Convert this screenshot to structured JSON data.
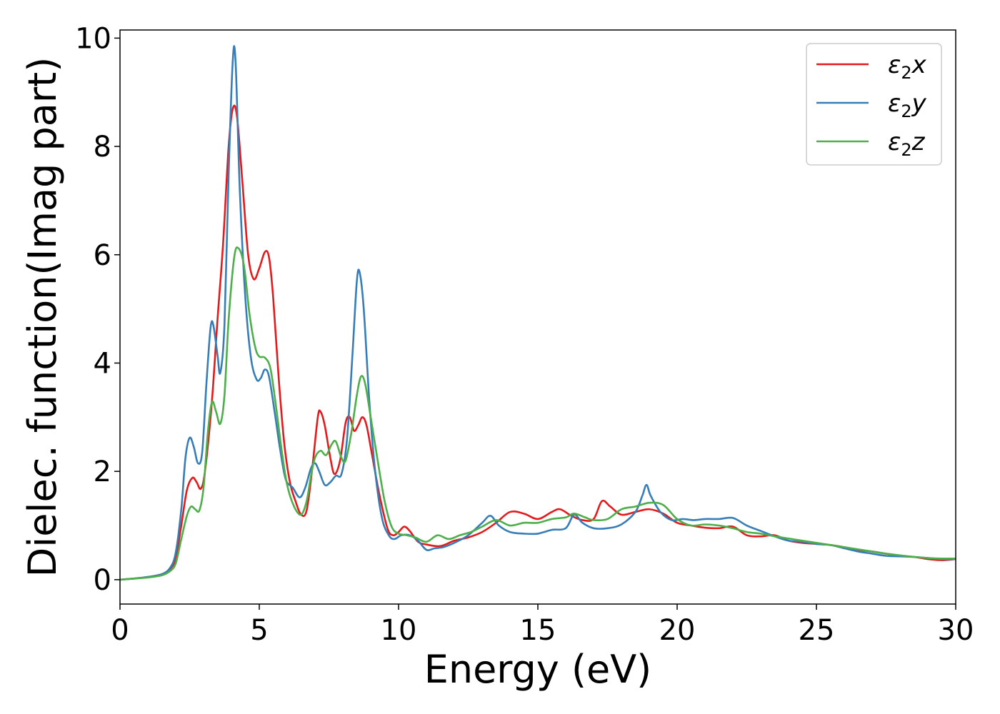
{
  "chart_data": {
    "type": "line",
    "title": "",
    "xlabel": "Energy (eV)",
    "ylabel": "Dielec. function(Imag part)",
    "xlim": [
      0,
      30
    ],
    "ylim": [
      -0.45,
      10.15
    ],
    "xticks": [
      0,
      5,
      10,
      15,
      20,
      25,
      30
    ],
    "yticks": [
      0,
      2,
      4,
      6,
      8,
      10
    ],
    "grid": false,
    "legend_position": "top-right",
    "series": [
      {
        "name": "ε2x",
        "label_main": "ε",
        "label_sub": "2",
        "label_suffix": "x",
        "color": "#e41a1c",
        "points": [
          [
            0,
            0
          ],
          [
            0.5,
            0.02
          ],
          [
            1,
            0.05
          ],
          [
            1.5,
            0.1
          ],
          [
            1.8,
            0.2
          ],
          [
            2,
            0.4
          ],
          [
            2.2,
            1
          ],
          [
            2.4,
            1.65
          ],
          [
            2.6,
            1.88
          ],
          [
            2.75,
            1.8
          ],
          [
            2.9,
            1.68
          ],
          [
            3.05,
            2.0
          ],
          [
            3.3,
            3.3
          ],
          [
            3.5,
            4.8
          ],
          [
            3.7,
            6.2
          ],
          [
            3.9,
            8.0
          ],
          [
            4.05,
            8.7
          ],
          [
            4.2,
            8.55
          ],
          [
            4.4,
            7.3
          ],
          [
            4.6,
            6.0
          ],
          [
            4.8,
            5.55
          ],
          [
            5.0,
            5.75
          ],
          [
            5.2,
            6.05
          ],
          [
            5.35,
            5.95
          ],
          [
            5.5,
            5.2
          ],
          [
            5.7,
            3.7
          ],
          [
            5.9,
            2.5
          ],
          [
            6.1,
            1.8
          ],
          [
            6.3,
            1.45
          ],
          [
            6.5,
            1.2
          ],
          [
            6.7,
            1.28
          ],
          [
            6.9,
            2.05
          ],
          [
            7.1,
            3.0
          ],
          [
            7.2,
            3.1
          ],
          [
            7.35,
            2.85
          ],
          [
            7.55,
            2.25
          ],
          [
            7.7,
            1.95
          ],
          [
            7.9,
            2.2
          ],
          [
            8.1,
            2.9
          ],
          [
            8.25,
            3.0
          ],
          [
            8.4,
            2.75
          ],
          [
            8.55,
            2.85
          ],
          [
            8.7,
            3.0
          ],
          [
            8.85,
            2.85
          ],
          [
            9.05,
            2.3
          ],
          [
            9.3,
            1.6
          ],
          [
            9.6,
            0.95
          ],
          [
            9.8,
            0.82
          ],
          [
            10.0,
            0.88
          ],
          [
            10.2,
            0.98
          ],
          [
            10.4,
            0.9
          ],
          [
            10.7,
            0.7
          ],
          [
            11.0,
            0.65
          ],
          [
            11.5,
            0.62
          ],
          [
            12.0,
            0.72
          ],
          [
            12.5,
            0.78
          ],
          [
            13.0,
            0.88
          ],
          [
            13.5,
            1.05
          ],
          [
            14.0,
            1.25
          ],
          [
            14.5,
            1.22
          ],
          [
            15.0,
            1.12
          ],
          [
            15.5,
            1.25
          ],
          [
            15.8,
            1.3
          ],
          [
            16.2,
            1.18
          ],
          [
            16.6,
            1.1
          ],
          [
            17.0,
            1.12
          ],
          [
            17.3,
            1.45
          ],
          [
            17.6,
            1.35
          ],
          [
            18.0,
            1.2
          ],
          [
            18.5,
            1.25
          ],
          [
            19.0,
            1.3
          ],
          [
            19.5,
            1.22
          ],
          [
            20.0,
            1.05
          ],
          [
            20.5,
            1.0
          ],
          [
            21.0,
            0.96
          ],
          [
            21.5,
            0.95
          ],
          [
            22.0,
            0.98
          ],
          [
            22.5,
            0.82
          ],
          [
            23.0,
            0.8
          ],
          [
            23.5,
            0.82
          ],
          [
            24.0,
            0.72
          ],
          [
            24.5,
            0.68
          ],
          [
            25.0,
            0.66
          ],
          [
            25.5,
            0.64
          ],
          [
            26.0,
            0.6
          ],
          [
            26.5,
            0.55
          ],
          [
            27.0,
            0.52
          ],
          [
            27.5,
            0.48
          ],
          [
            28.0,
            0.44
          ],
          [
            28.5,
            0.42
          ],
          [
            29.0,
            0.38
          ],
          [
            29.5,
            0.36
          ],
          [
            30.0,
            0.38
          ]
        ]
      },
      {
        "name": "ε2y",
        "label_main": "ε",
        "label_sub": "2",
        "label_suffix": "y",
        "color": "#377eb8",
        "points": [
          [
            0,
            0
          ],
          [
            0.5,
            0.02
          ],
          [
            1,
            0.05
          ],
          [
            1.5,
            0.1
          ],
          [
            1.8,
            0.22
          ],
          [
            2,
            0.5
          ],
          [
            2.2,
            1.3
          ],
          [
            2.35,
            2.25
          ],
          [
            2.5,
            2.62
          ],
          [
            2.65,
            2.45
          ],
          [
            2.8,
            2.15
          ],
          [
            2.95,
            2.35
          ],
          [
            3.1,
            3.6
          ],
          [
            3.25,
            4.65
          ],
          [
            3.35,
            4.7
          ],
          [
            3.5,
            4.15
          ],
          [
            3.6,
            3.82
          ],
          [
            3.75,
            4.7
          ],
          [
            3.9,
            7.5
          ],
          [
            4.05,
            9.6
          ],
          [
            4.15,
            9.55
          ],
          [
            4.3,
            7.2
          ],
          [
            4.5,
            5.2
          ],
          [
            4.7,
            4.1
          ],
          [
            4.9,
            3.7
          ],
          [
            5.05,
            3.72
          ],
          [
            5.2,
            3.88
          ],
          [
            5.35,
            3.75
          ],
          [
            5.55,
            3.1
          ],
          [
            5.75,
            2.4
          ],
          [
            5.95,
            1.85
          ],
          [
            6.2,
            1.7
          ],
          [
            6.45,
            1.52
          ],
          [
            6.65,
            1.7
          ],
          [
            6.85,
            2.05
          ],
          [
            7.0,
            2.15
          ],
          [
            7.15,
            2.0
          ],
          [
            7.35,
            1.75
          ],
          [
            7.55,
            1.8
          ],
          [
            7.75,
            1.92
          ],
          [
            7.95,
            1.95
          ],
          [
            8.15,
            2.6
          ],
          [
            8.35,
            4.2
          ],
          [
            8.5,
            5.5
          ],
          [
            8.6,
            5.68
          ],
          [
            8.75,
            5.0
          ],
          [
            8.95,
            3.3
          ],
          [
            9.15,
            2.05
          ],
          [
            9.4,
            1.15
          ],
          [
            9.65,
            0.82
          ],
          [
            9.85,
            0.75
          ],
          [
            10.1,
            0.82
          ],
          [
            10.4,
            0.82
          ],
          [
            10.7,
            0.72
          ],
          [
            11.0,
            0.55
          ],
          [
            11.3,
            0.58
          ],
          [
            11.6,
            0.6
          ],
          [
            12.0,
            0.68
          ],
          [
            12.5,
            0.82
          ],
          [
            13.0,
            1.05
          ],
          [
            13.3,
            1.18
          ],
          [
            13.6,
            1.0
          ],
          [
            14.0,
            0.88
          ],
          [
            14.5,
            0.85
          ],
          [
            15.0,
            0.85
          ],
          [
            15.5,
            0.92
          ],
          [
            16.0,
            0.95
          ],
          [
            16.3,
            1.2
          ],
          [
            16.6,
            1.05
          ],
          [
            17.0,
            0.95
          ],
          [
            17.5,
            0.95
          ],
          [
            18.0,
            1.02
          ],
          [
            18.5,
            1.25
          ],
          [
            18.75,
            1.55
          ],
          [
            18.9,
            1.75
          ],
          [
            19.05,
            1.55
          ],
          [
            19.4,
            1.25
          ],
          [
            19.8,
            1.1
          ],
          [
            20.2,
            1.12
          ],
          [
            20.6,
            1.1
          ],
          [
            21.0,
            1.12
          ],
          [
            21.5,
            1.12
          ],
          [
            22.0,
            1.14
          ],
          [
            22.5,
            1.0
          ],
          [
            23.0,
            0.9
          ],
          [
            23.5,
            0.8
          ],
          [
            24.0,
            0.72
          ],
          [
            24.5,
            0.7
          ],
          [
            25.0,
            0.66
          ],
          [
            25.5,
            0.64
          ],
          [
            26.0,
            0.58
          ],
          [
            26.5,
            0.52
          ],
          [
            27.0,
            0.48
          ],
          [
            27.5,
            0.44
          ],
          [
            28.0,
            0.43
          ],
          [
            28.5,
            0.42
          ],
          [
            29.0,
            0.4
          ],
          [
            29.5,
            0.38
          ],
          [
            30.0,
            0.38
          ]
        ]
      },
      {
        "name": "ε2z",
        "label_main": "ε",
        "label_sub": "2",
        "label_suffix": "z",
        "color": "#4daf4a",
        "points": [
          [
            0,
            0
          ],
          [
            0.5,
            0.02
          ],
          [
            1,
            0.04
          ],
          [
            1.5,
            0.08
          ],
          [
            1.8,
            0.16
          ],
          [
            2,
            0.3
          ],
          [
            2.2,
            0.75
          ],
          [
            2.4,
            1.18
          ],
          [
            2.55,
            1.35
          ],
          [
            2.7,
            1.3
          ],
          [
            2.85,
            1.28
          ],
          [
            3.0,
            1.7
          ],
          [
            3.15,
            2.7
          ],
          [
            3.3,
            3.28
          ],
          [
            3.45,
            3.1
          ],
          [
            3.6,
            2.88
          ],
          [
            3.75,
            3.4
          ],
          [
            3.9,
            4.8
          ],
          [
            4.1,
            5.95
          ],
          [
            4.25,
            6.12
          ],
          [
            4.45,
            5.8
          ],
          [
            4.65,
            4.9
          ],
          [
            4.85,
            4.3
          ],
          [
            5.0,
            4.12
          ],
          [
            5.2,
            4.1
          ],
          [
            5.4,
            3.9
          ],
          [
            5.6,
            3.2
          ],
          [
            5.8,
            2.4
          ],
          [
            6.0,
            1.75
          ],
          [
            6.25,
            1.35
          ],
          [
            6.5,
            1.2
          ],
          [
            6.7,
            1.45
          ],
          [
            6.85,
            1.9
          ],
          [
            7.0,
            2.25
          ],
          [
            7.2,
            2.38
          ],
          [
            7.4,
            2.3
          ],
          [
            7.6,
            2.5
          ],
          [
            7.75,
            2.55
          ],
          [
            7.95,
            2.25
          ],
          [
            8.1,
            2.2
          ],
          [
            8.3,
            2.7
          ],
          [
            8.5,
            3.4
          ],
          [
            8.65,
            3.75
          ],
          [
            8.8,
            3.62
          ],
          [
            9.0,
            3.0
          ],
          [
            9.25,
            2.2
          ],
          [
            9.5,
            1.45
          ],
          [
            9.75,
            0.98
          ],
          [
            10.0,
            0.85
          ],
          [
            10.3,
            0.82
          ],
          [
            10.6,
            0.78
          ],
          [
            11.0,
            0.7
          ],
          [
            11.4,
            0.82
          ],
          [
            11.8,
            0.75
          ],
          [
            12.2,
            0.82
          ],
          [
            12.6,
            0.88
          ],
          [
            13.0,
            0.98
          ],
          [
            13.5,
            1.1
          ],
          [
            14.0,
            1.0
          ],
          [
            14.5,
            1.05
          ],
          [
            15.0,
            1.05
          ],
          [
            15.5,
            1.12
          ],
          [
            16.0,
            1.15
          ],
          [
            16.3,
            1.22
          ],
          [
            16.7,
            1.15
          ],
          [
            17.0,
            1.1
          ],
          [
            17.5,
            1.12
          ],
          [
            18.0,
            1.3
          ],
          [
            18.5,
            1.35
          ],
          [
            19.0,
            1.42
          ],
          [
            19.5,
            1.38
          ],
          [
            20.0,
            1.12
          ],
          [
            20.5,
            1.0
          ],
          [
            21.0,
            1.02
          ],
          [
            21.5,
            1.0
          ],
          [
            22.0,
            0.95
          ],
          [
            22.5,
            0.88
          ],
          [
            23.0,
            0.85
          ],
          [
            23.5,
            0.8
          ],
          [
            24.0,
            0.76
          ],
          [
            24.5,
            0.72
          ],
          [
            25.0,
            0.68
          ],
          [
            25.5,
            0.64
          ],
          [
            26.0,
            0.6
          ],
          [
            26.5,
            0.56
          ],
          [
            27.0,
            0.52
          ],
          [
            27.5,
            0.48
          ],
          [
            28.0,
            0.45
          ],
          [
            28.5,
            0.42
          ],
          [
            29.0,
            0.4
          ],
          [
            29.5,
            0.39
          ],
          [
            30.0,
            0.39
          ]
        ]
      }
    ]
  }
}
